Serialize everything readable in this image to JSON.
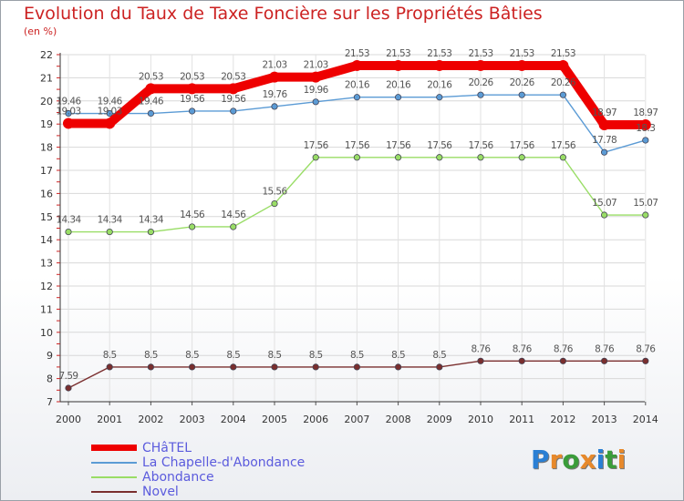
{
  "chart_data": {
    "type": "line",
    "title": "Evolution du Taux de Taxe Foncière sur les Propriétés Bâties",
    "ylabel": "(en %)",
    "xlabel": "",
    "x": [
      "2000",
      "2001",
      "2002",
      "2003",
      "2004",
      "2005",
      "2006",
      "2007",
      "2008",
      "2009",
      "2010",
      "2011",
      "2012",
      "2013",
      "2014"
    ],
    "ylim": [
      7,
      22
    ],
    "yticks": [
      7,
      8,
      9,
      10,
      11,
      12,
      13,
      14,
      15,
      16,
      17,
      18,
      19,
      20,
      21,
      22
    ],
    "series": [
      {
        "name": "CHâTEL",
        "color": "#ee0000",
        "values": [
          19.03,
          19.03,
          20.53,
          20.53,
          20.53,
          21.03,
          21.03,
          21.53,
          21.53,
          21.53,
          21.53,
          21.53,
          21.53,
          18.97,
          18.97
        ],
        "labels": [
          "19.03",
          "19.03",
          "20.53",
          "20.53",
          "20.53",
          "21.03",
          "21.03",
          "21.53",
          "21.53",
          "21.53",
          "21.53",
          "21.53",
          "21.53",
          "18.97",
          "18.97"
        ]
      },
      {
        "name": "La Chapelle-d'Abondance",
        "color": "#5b9bd5",
        "values": [
          19.46,
          19.46,
          19.46,
          19.56,
          19.56,
          19.76,
          19.96,
          20.16,
          20.16,
          20.16,
          20.26,
          20.26,
          20.26,
          17.78,
          18.3
        ],
        "labels": [
          "19.46",
          "19.46",
          "19.46",
          "19.56",
          "19.56",
          "19.76",
          "19.96",
          "20.16",
          "20.16",
          "20.16",
          "20.26",
          "20.26",
          "20.26",
          "17.78",
          "18.3"
        ]
      },
      {
        "name": "Abondance",
        "color": "#99dd66",
        "values": [
          14.34,
          14.34,
          14.34,
          14.56,
          14.56,
          15.56,
          17.56,
          17.56,
          17.56,
          17.56,
          17.56,
          17.56,
          17.56,
          15.07,
          15.07
        ],
        "labels": [
          "14.34",
          "14.34",
          "14.34",
          "14.56",
          "14.56",
          "15.56",
          "17.56",
          "17.56",
          "17.56",
          "17.56",
          "17.56",
          "17.56",
          "17.56",
          "15.07",
          "15.07"
        ]
      },
      {
        "name": "Novel",
        "color": "#7a2e2e",
        "values": [
          7.59,
          8.5,
          8.5,
          8.5,
          8.5,
          8.5,
          8.5,
          8.5,
          8.5,
          8.5,
          8.76,
          8.76,
          8.76,
          8.76,
          8.76
        ],
        "labels": [
          "7.59",
          "8.5",
          "8.5",
          "8.5",
          "8.5",
          "8.5",
          "8.5",
          "8.5",
          "8.5",
          "8.5",
          "8.76",
          "8.76",
          "8.76",
          "8.76",
          "8.76"
        ]
      }
    ],
    "legend_position": "bottom-left",
    "grid": true
  },
  "brand": {
    "logo_letters": [
      "P",
      "r",
      "o",
      "x",
      "i",
      "t",
      "i"
    ]
  }
}
